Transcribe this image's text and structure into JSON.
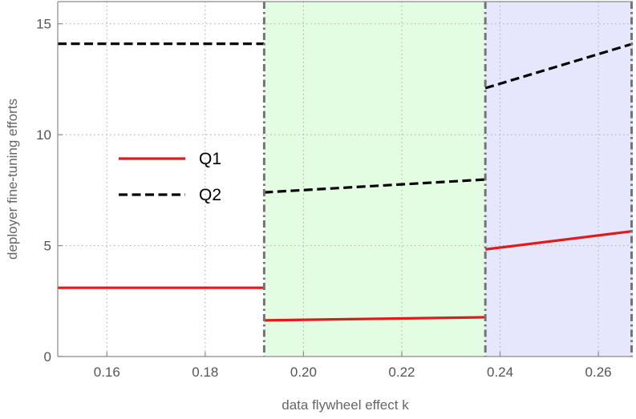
{
  "chart_data": {
    "type": "line",
    "title": "",
    "xlabel": "data flywheel effect k",
    "ylabel": "deployer fine-tuning efforts",
    "xlim": [
      0.15,
      0.267
    ],
    "ylim": [
      0,
      16
    ],
    "x_ticks": [
      0.16,
      0.18,
      0.2,
      0.22,
      0.24,
      0.26
    ],
    "x_tick_labels": [
      "0.16",
      "0.18",
      "0.20",
      "0.22",
      "0.24",
      "0.26"
    ],
    "y_ticks": [
      0,
      5,
      10,
      15
    ],
    "y_tick_labels": [
      "0",
      "5",
      "10",
      "15"
    ],
    "grid": true,
    "legend_position": "center-left",
    "regions": [
      {
        "x_start": 0.192,
        "x_end": 0.237,
        "color": "#e3fde3"
      },
      {
        "x_start": 0.237,
        "x_end": 0.267,
        "color": "#e6e6fd"
      }
    ],
    "region_boundaries": [
      0.192,
      0.237,
      0.267
    ],
    "series": [
      {
        "name": "Q1",
        "color": "#e01b1b",
        "style": "solid",
        "segments": [
          [
            [
              0.15,
              3.1
            ],
            [
              0.192,
              3.1
            ]
          ],
          [
            [
              0.192,
              1.63
            ],
            [
              0.237,
              1.77
            ]
          ],
          [
            [
              0.237,
              4.83
            ],
            [
              0.267,
              5.65
            ]
          ]
        ]
      },
      {
        "name": "Q2",
        "color": "#000000",
        "style": "dashed",
        "segments": [
          [
            [
              0.15,
              14.1
            ],
            [
              0.192,
              14.1
            ]
          ],
          [
            [
              0.192,
              7.4
            ],
            [
              0.237,
              7.98
            ]
          ],
          [
            [
              0.237,
              12.1
            ],
            [
              0.267,
              14.1
            ]
          ]
        ]
      }
    ]
  }
}
